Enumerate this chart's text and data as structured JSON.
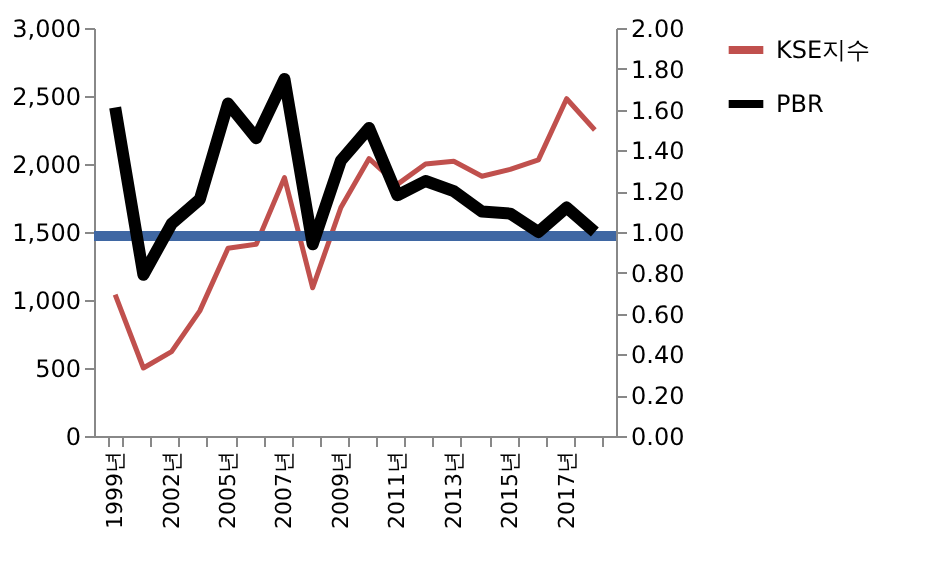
{
  "chart_data": {
    "type": "line",
    "categories": [
      "1999년",
      null,
      "2002년",
      null,
      "2005년",
      null,
      "2007년",
      null,
      "2009년",
      null,
      "2011년",
      null,
      "2013년",
      null,
      "2015년",
      null,
      "2017년",
      null
    ],
    "series": [
      {
        "name": "KSE지수",
        "color": "#c0504d",
        "values": [
          1040,
          500,
          620,
          920,
          1380,
          1410,
          1900,
          1090,
          1680,
          2040,
          1850,
          2000,
          2020,
          1910,
          1960,
          2030,
          2480,
          2250
        ]
      },
      {
        "name": "PBR",
        "color": "#000000",
        "axis": "y2",
        "values": [
          1.61,
          0.79,
          1.04,
          1.16,
          1.63,
          1.46,
          1.75,
          0.94,
          1.35,
          1.51,
          1.18,
          1.25,
          1.2,
          1.1,
          1.09,
          1.0,
          1.12,
          1.0
        ]
      }
    ],
    "ylim": [
      0,
      3000
    ],
    "yticks": [
      {
        "value": 0,
        "label": "0"
      },
      {
        "value": 500,
        "label": "500"
      },
      {
        "value": 1000,
        "label": "1,000"
      },
      {
        "value": 1500,
        "label": "1,500"
      },
      {
        "value": 2000,
        "label": "2,000"
      },
      {
        "value": 2500,
        "label": "2,500"
      },
      {
        "value": 3000,
        "label": "3,000"
      }
    ],
    "y2lim": [
      0,
      2
    ],
    "y2ticks": [
      {
        "value": 0,
        "label": "0.00"
      },
      {
        "value": 0.2,
        "label": "0.20"
      },
      {
        "value": 0.4,
        "label": "0.40"
      },
      {
        "value": 0.6,
        "label": "0.60"
      },
      {
        "value": 0.8,
        "label": "0.80"
      },
      {
        "value": 1.0,
        "label": "1.00"
      },
      {
        "value": 1.2,
        "label": "1.20"
      },
      {
        "value": 1.4,
        "label": "1.40"
      },
      {
        "value": 1.6,
        "label": "1.60"
      },
      {
        "value": 1.8,
        "label": "1.80"
      },
      {
        "value": 2.0,
        "label": "2.00"
      }
    ],
    "ref_lines": [
      {
        "axis": "y2",
        "value": 0.98,
        "color": "#3f67a3"
      }
    ],
    "grid": false,
    "legend": "right",
    "marker": "none"
  }
}
